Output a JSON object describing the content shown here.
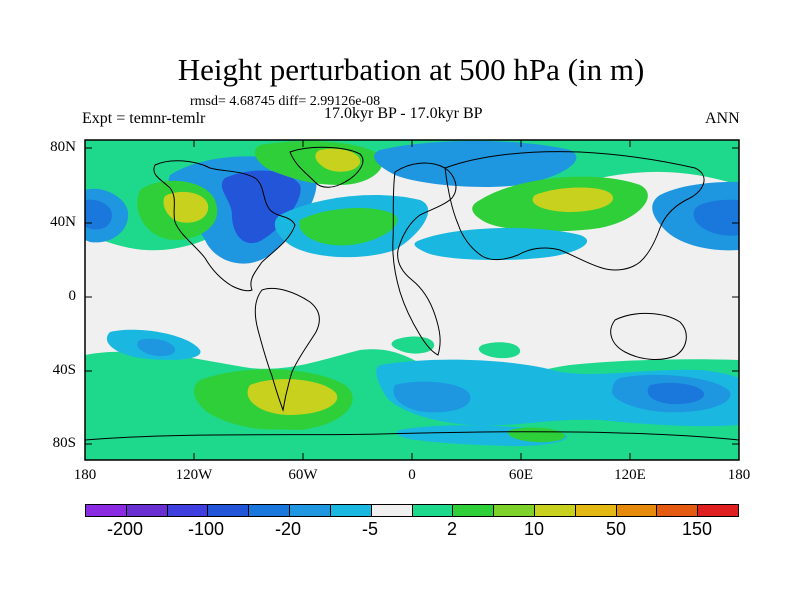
{
  "title": "Height perturbation at 500 hPa (in m)",
  "stats": "rmsd= 4.68745 diff= 2.99126e-08",
  "experiment": "Expt = temnr-temlr",
  "period": "17.0kyr BP - 17.0kyr BP",
  "season": "ANN",
  "lat_ticks": [
    "80N",
    "40N",
    "0",
    "40S",
    "80S"
  ],
  "lon_ticks": [
    "180",
    "120W",
    "60W",
    "0",
    "60E",
    "120E",
    "180"
  ],
  "colorbar": {
    "colors": [
      "#8a2be2",
      "#6a2fd0",
      "#3f3fe0",
      "#2355d8",
      "#1a78dc",
      "#1e96e0",
      "#1ab8e0",
      "#f0f0f0",
      "#1ed98c",
      "#2fcf3a",
      "#7ed02a",
      "#c8d11e",
      "#e3b812",
      "#e68a0c",
      "#e45a10",
      "#e02020"
    ],
    "labels": [
      "-200",
      "-100",
      "-20",
      "-5",
      "2",
      "10",
      "50",
      "150"
    ]
  },
  "field_colors": {
    "ocean_bg": "#f0f0f0",
    "light_blue": "#1ab8e0",
    "mid_blue": "#1e96e0",
    "blue": "#1a78dc",
    "dark_blue": "#2355d8",
    "teal": "#1ed98c",
    "green": "#2fcf3a",
    "yellow_green": "#c8d11e"
  }
}
